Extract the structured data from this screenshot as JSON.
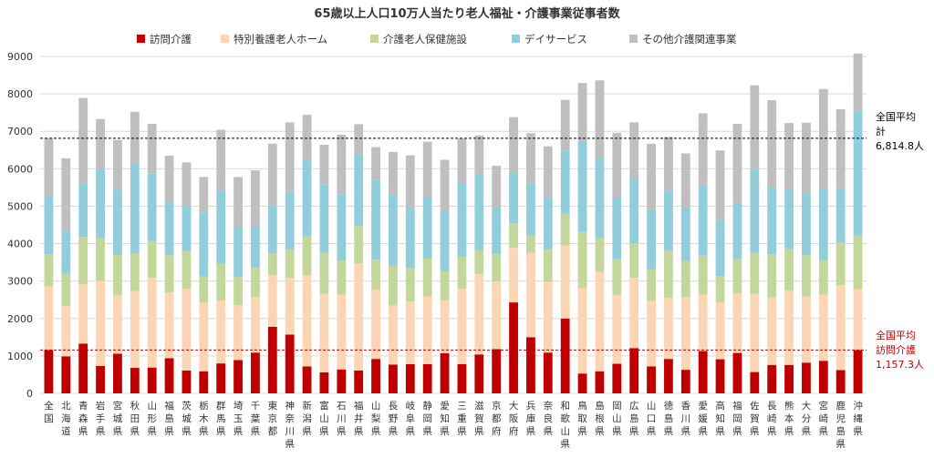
{
  "chart_data": {
    "type": "bar",
    "stacked": true,
    "title": "65歳以上人口10万人当たり老人福祉・介護事業従事者数",
    "ylim": [
      0,
      9000
    ],
    "yticks": [
      0,
      1000,
      2000,
      3000,
      4000,
      5000,
      6000,
      7000,
      8000,
      9000
    ],
    "grid": true,
    "legend_position": "top",
    "categories": [
      "全国",
      "北海道",
      "青森県",
      "岩手県",
      "宮城県",
      "秋田県",
      "山形県",
      "福島県",
      "茨城県",
      "栃木県",
      "群馬県",
      "埼玉県",
      "千葉県",
      "東京都",
      "神奈川県",
      "新潟県",
      "富山県",
      "石川県",
      "福井県",
      "山梨県",
      "長野県",
      "岐阜県",
      "静岡県",
      "愛知県",
      "三重県",
      "滋賀県",
      "京都府",
      "大阪府",
      "兵庫県",
      "奈良県",
      "和歌山県",
      "鳥取県",
      "島根県",
      "岡山県",
      "広島県",
      "山口県",
      "徳島県",
      "香川県",
      "愛媛県",
      "高知県",
      "福岡県",
      "佐賀県",
      "長崎県",
      "熊本県",
      "大分県",
      "宮崎県",
      "鹿児島県",
      "沖縄県"
    ],
    "series": [
      {
        "name": "訪問介護",
        "color": "#c00000",
        "values": [
          1157,
          990,
          1330,
          730,
          1060,
          680,
          690,
          940,
          610,
          590,
          800,
          890,
          1090,
          1780,
          1570,
          720,
          560,
          640,
          610,
          920,
          770,
          780,
          780,
          1070,
          780,
          1040,
          1180,
          2430,
          1500,
          1090,
          2000,
          530,
          590,
          790,
          1210,
          720,
          920,
          630,
          1130,
          910,
          1080,
          570,
          760,
          760,
          820,
          870,
          620,
          1157
        ]
      },
      {
        "name": "特別養護老人ホーム",
        "color": "#fcd5b4",
        "values": [
          1700,
          1350,
          1580,
          2280,
          1550,
          2050,
          2400,
          1760,
          2180,
          1830,
          1680,
          1470,
          1480,
          1380,
          1520,
          2440,
          2100,
          2000,
          2860,
          1850,
          1580,
          1670,
          1810,
          1420,
          2010,
          2150,
          1820,
          1460,
          2250,
          1890,
          1950,
          2280,
          2660,
          1840,
          1880,
          1750,
          1630,
          1940,
          1510,
          1520,
          1590,
          2090,
          1800,
          1980,
          1770,
          1770,
          2270,
          1620
        ]
      },
      {
        "name": "介護老人保健施設",
        "color": "#c4d79b",
        "values": [
          860,
          850,
          1270,
          1130,
          1090,
          1010,
          980,
          990,
          1010,
          700,
          980,
          750,
          800,
          580,
          750,
          1030,
          1090,
          910,
          1000,
          800,
          1060,
          900,
          1010,
          770,
          870,
          640,
          720,
          650,
          470,
          860,
          850,
          1500,
          910,
          950,
          920,
          840,
          1270,
          970,
          1040,
          700,
          920,
          1100,
          1160,
          1120,
          1100,
          910,
          1140,
          1440
        ]
      },
      {
        "name": "デイサービス",
        "color": "#92cddc",
        "values": [
          1560,
          1150,
          1420,
          1840,
          1740,
          2410,
          1810,
          1430,
          1200,
          1700,
          1940,
          1330,
          1090,
          1290,
          1520,
          2070,
          1840,
          1760,
          1910,
          2130,
          1900,
          1640,
          1640,
          1600,
          1960,
          2050,
          1240,
          1360,
          1380,
          1380,
          1690,
          2430,
          2140,
          1650,
          1720,
          1600,
          1590,
          1410,
          1870,
          1510,
          1490,
          2240,
          1800,
          1590,
          1650,
          1900,
          1450,
          3330
        ]
      },
      {
        "name": "その他介護関連事業",
        "color": "#bfbfbf",
        "values": [
          1540,
          1940,
          2290,
          1350,
          1330,
          1370,
          1320,
          1230,
          1170,
          960,
          1640,
          1340,
          1500,
          1640,
          1880,
          1180,
          1050,
          1600,
          810,
          880,
          1140,
          1370,
          1480,
          1380,
          1190,
          1010,
          1120,
          1480,
          1350,
          1380,
          1350,
          1550,
          2060,
          1730,
          1510,
          1760,
          1440,
          1460,
          1930,
          1850,
          2120,
          2230,
          2310,
          1770,
          1890,
          2680,
          2110,
          1530
        ]
      }
    ],
    "annotations": [
      {
        "label": "全国平均\n計\n6,814.8人",
        "value": 6814.8,
        "color": "#000000"
      },
      {
        "label": "全国平均\n訪問介護\n1,157.3人",
        "value": 1157.3,
        "color": "#c00000"
      }
    ]
  }
}
